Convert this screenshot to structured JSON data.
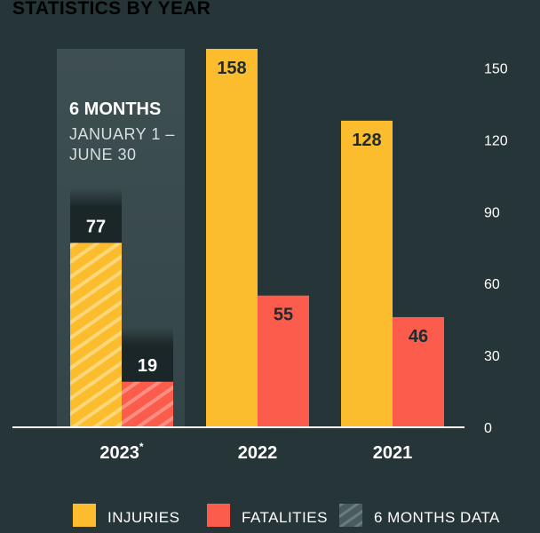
{
  "chart_data": {
    "type": "bar",
    "title": "STATISTICS BY YEAR",
    "categories": [
      "2023",
      "2022",
      "2021"
    ],
    "category_marks": [
      "*",
      "",
      ""
    ],
    "series": [
      {
        "name": "INJURIES",
        "values": [
          77,
          158,
          128
        ],
        "color": "#fbbd2d"
      },
      {
        "name": "FATALITIES",
        "values": [
          19,
          55,
          46
        ],
        "color": "#fc5c4b"
      }
    ],
    "yticks": [
      0,
      30,
      60,
      90,
      120,
      150
    ],
    "ylim": [
      0,
      158
    ],
    "partial_period": {
      "category": "2023",
      "heading": "6 MONTHS",
      "line1": "JANUARY 1 –",
      "line2": "JUNE 30"
    },
    "legend": {
      "position": "bottom",
      "items": [
        {
          "label": "INJURIES",
          "color": "#fbbd2d"
        },
        {
          "label": "FATALITIES",
          "color": "#fc5c4b"
        },
        {
          "label": "6 MONTHS DATA",
          "color": "#4a5b5e"
        }
      ]
    },
    "colors": {
      "background": "#263537",
      "axis": "#ffffff",
      "highlight": "#3c4d50"
    }
  }
}
